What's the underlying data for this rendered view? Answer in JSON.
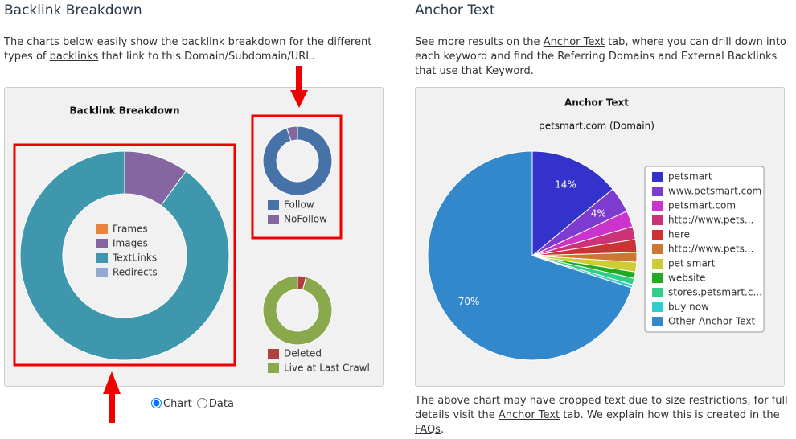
{
  "left": {
    "heading": "Backlink Breakdown",
    "intro": [
      "The charts below easily show the backlink breakdown for the different types of",
      "backlinks",
      "that link to this Domain/Subdomain/URL."
    ],
    "view_options": [
      "Chart",
      "Data"
    ]
  },
  "right": {
    "heading": "Anchor Text",
    "intro": [
      "See more results on the",
      "Anchor Text",
      "tab, where you can drill down into each keyword and find the Referring Domains and External Backlinks that use that Keyword."
    ],
    "footer": [
      "The above chart may have cropped text due to size restrictions, for full details visit the",
      "Anchor Text",
      "tab. We explain how this is created in the",
      "FAQs",
      "."
    ]
  },
  "chart_data": [
    {
      "type": "donut",
      "title": "Backlink Breakdown",
      "categories": [
        "Frames",
        "Images",
        "TextLinks",
        "Redirects"
      ],
      "values": [
        0,
        10,
        90,
        0
      ],
      "colors": [
        "#e8843e",
        "#8566a0",
        "#3e97ac",
        "#93a9d0"
      ]
    },
    {
      "type": "donut",
      "categories": [
        "Follow",
        "NoFollow"
      ],
      "values": [
        95,
        5
      ],
      "colors": [
        "#4672a8",
        "#8566a0"
      ]
    },
    {
      "type": "donut",
      "categories": [
        "Deleted",
        "Live at Last Crawl"
      ],
      "values": [
        4,
        96
      ],
      "colors": [
        "#b04040",
        "#8aa84c"
      ]
    },
    {
      "type": "pie",
      "title": "Anchor Text",
      "subtitle": "petsmart.com (Domain)",
      "categories": [
        "petsmart",
        "www.petsmart.com",
        "petsmart.com",
        "http://www.pets...",
        "here",
        "http://www.pets...",
        "pet smart",
        "website",
        "stores.petsmart.c...",
        "buy now",
        "Other Anchor Text"
      ],
      "values": [
        14,
        4,
        2.5,
        2,
        2,
        1.5,
        1.5,
        1,
        1,
        0.5,
        70
      ],
      "value_labels": [
        "14%",
        "4%",
        null,
        null,
        null,
        null,
        null,
        null,
        null,
        null,
        "70%"
      ],
      "colors": [
        "#3333cc",
        "#7d3ccf",
        "#cc33cc",
        "#cc3377",
        "#cc3333",
        "#cc7733",
        "#cccc33",
        "#22aa22",
        "#33cc88",
        "#33cccc",
        "#3388cc"
      ]
    }
  ]
}
